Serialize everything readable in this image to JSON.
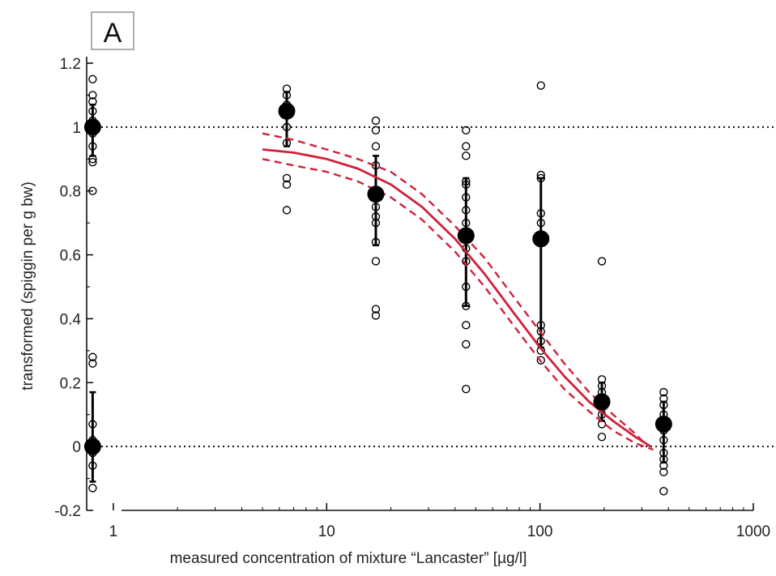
{
  "chart_data": {
    "type": "scatter",
    "panel_label": "A",
    "xlabel": "measured concentration of mixture “Lancaster” [µg/l]",
    "ylabel": "transformed (spiggin per g bw)",
    "x_scale": "log",
    "xlim": [
      0.75,
      1000
    ],
    "ylim": [
      -0.2,
      1.2
    ],
    "x_ticks": [
      1,
      10,
      100,
      1000
    ],
    "x_tick_labels": [
      "1",
      "10",
      "100",
      "1000"
    ],
    "y_ticks": [
      -0.2,
      0,
      0.2,
      0.4,
      0.6,
      0.8,
      1,
      1.2
    ],
    "y_tick_labels": [
      "-0.2",
      "0",
      "0.2",
      "0.4",
      "0.6",
      "0.8",
      "1",
      "1.2"
    ],
    "reference_lines": [
      1,
      0
    ],
    "colors": {
      "fit": "#d0213a",
      "points": "#000000"
    },
    "individual_points": [
      {
        "x": 0.8,
        "y": 1.15
      },
      {
        "x": 0.8,
        "y": 1.1
      },
      {
        "x": 0.8,
        "y": 1.08
      },
      {
        "x": 0.8,
        "y": 1.05
      },
      {
        "x": 0.8,
        "y": 1.02
      },
      {
        "x": 0.8,
        "y": 0.98
      },
      {
        "x": 0.8,
        "y": 0.94
      },
      {
        "x": 0.8,
        "y": 0.9
      },
      {
        "x": 0.8,
        "y": 0.89
      },
      {
        "x": 0.8,
        "y": 0.8
      },
      {
        "x": 0.8,
        "y": 0.28
      },
      {
        "x": 0.8,
        "y": 0.26
      },
      {
        "x": 0.8,
        "y": 0.07
      },
      {
        "x": 0.8,
        "y": 0.02
      },
      {
        "x": 0.8,
        "y": -0.02
      },
      {
        "x": 0.8,
        "y": -0.06
      },
      {
        "x": 0.8,
        "y": -0.13
      },
      {
        "x": 6.5,
        "y": 1.12
      },
      {
        "x": 6.5,
        "y": 1.1
      },
      {
        "x": 6.5,
        "y": 1.07
      },
      {
        "x": 6.5,
        "y": 1.0
      },
      {
        "x": 6.5,
        "y": 0.95
      },
      {
        "x": 6.5,
        "y": 0.84
      },
      {
        "x": 6.5,
        "y": 0.82
      },
      {
        "x": 6.5,
        "y": 0.74
      },
      {
        "x": 17,
        "y": 1.02
      },
      {
        "x": 17,
        "y": 0.99
      },
      {
        "x": 17,
        "y": 0.94
      },
      {
        "x": 17,
        "y": 0.88
      },
      {
        "x": 17,
        "y": 0.8
      },
      {
        "x": 17,
        "y": 0.75
      },
      {
        "x": 17,
        "y": 0.72
      },
      {
        "x": 17,
        "y": 0.7
      },
      {
        "x": 17,
        "y": 0.64
      },
      {
        "x": 17,
        "y": 0.58
      },
      {
        "x": 17,
        "y": 0.43
      },
      {
        "x": 17,
        "y": 0.41
      },
      {
        "x": 45,
        "y": 0.99
      },
      {
        "x": 45,
        "y": 0.94
      },
      {
        "x": 45,
        "y": 0.91
      },
      {
        "x": 45,
        "y": 0.83
      },
      {
        "x": 45,
        "y": 0.82
      },
      {
        "x": 45,
        "y": 0.78
      },
      {
        "x": 45,
        "y": 0.74
      },
      {
        "x": 45,
        "y": 0.7
      },
      {
        "x": 45,
        "y": 0.66
      },
      {
        "x": 45,
        "y": 0.62
      },
      {
        "x": 45,
        "y": 0.58
      },
      {
        "x": 45,
        "y": 0.5
      },
      {
        "x": 45,
        "y": 0.44
      },
      {
        "x": 45,
        "y": 0.38
      },
      {
        "x": 45,
        "y": 0.32
      },
      {
        "x": 45,
        "y": 0.18
      },
      {
        "x": 101,
        "y": 1.13
      },
      {
        "x": 101,
        "y": 0.85
      },
      {
        "x": 101,
        "y": 0.84
      },
      {
        "x": 101,
        "y": 0.73
      },
      {
        "x": 101,
        "y": 0.7
      },
      {
        "x": 101,
        "y": 0.38
      },
      {
        "x": 101,
        "y": 0.36
      },
      {
        "x": 101,
        "y": 0.33
      },
      {
        "x": 101,
        "y": 0.3
      },
      {
        "x": 101,
        "y": 0.27
      },
      {
        "x": 195,
        "y": 0.58
      },
      {
        "x": 195,
        "y": 0.21
      },
      {
        "x": 195,
        "y": 0.19
      },
      {
        "x": 195,
        "y": 0.17
      },
      {
        "x": 195,
        "y": 0.15
      },
      {
        "x": 195,
        "y": 0.12
      },
      {
        "x": 195,
        "y": 0.1
      },
      {
        "x": 195,
        "y": 0.07
      },
      {
        "x": 195,
        "y": 0.03
      },
      {
        "x": 380,
        "y": 0.17
      },
      {
        "x": 380,
        "y": 0.15
      },
      {
        "x": 380,
        "y": 0.13
      },
      {
        "x": 380,
        "y": 0.1
      },
      {
        "x": 380,
        "y": 0.08
      },
      {
        "x": 380,
        "y": 0.05
      },
      {
        "x": 380,
        "y": 0.02
      },
      {
        "x": 380,
        "y": -0.02
      },
      {
        "x": 380,
        "y": -0.04
      },
      {
        "x": 380,
        "y": -0.06
      },
      {
        "x": 380,
        "y": -0.08
      },
      {
        "x": 380,
        "y": -0.14
      }
    ],
    "group_means": [
      {
        "x": 0.8,
        "y": 1.0,
        "err_low": 0.91,
        "err_high": 1.07
      },
      {
        "x": 0.8,
        "y": 0.0,
        "err_low": -0.11,
        "err_high": 0.17
      },
      {
        "x": 6.5,
        "y": 1.05,
        "err_low": 0.94,
        "err_high": 1.11
      },
      {
        "x": 17,
        "y": 0.79,
        "err_low": 0.63,
        "err_high": 0.91
      },
      {
        "x": 45,
        "y": 0.66,
        "err_low": 0.44,
        "err_high": 0.84
      },
      {
        "x": 101,
        "y": 0.65,
        "err_low": 0.31,
        "err_high": 0.84
      },
      {
        "x": 195,
        "y": 0.14,
        "err_low": 0.08,
        "err_high": 0.2
      },
      {
        "x": 380,
        "y": 0.07,
        "err_low": -0.05,
        "err_high": 0.14
      }
    ],
    "fit_curve": {
      "x": [
        5,
        7,
        10,
        14,
        20,
        28,
        40,
        55,
        75,
        100,
        130,
        170,
        220,
        280,
        330
      ],
      "y": [
        0.93,
        0.92,
        0.9,
        0.87,
        0.82,
        0.75,
        0.65,
        0.54,
        0.42,
        0.31,
        0.22,
        0.14,
        0.08,
        0.03,
        0.0
      ]
    },
    "fit_ci_upper": {
      "x": [
        5,
        7,
        10,
        14,
        20,
        28,
        40,
        55,
        75,
        100,
        130,
        170,
        220,
        280,
        320
      ],
      "y": [
        0.98,
        0.96,
        0.93,
        0.9,
        0.86,
        0.79,
        0.69,
        0.59,
        0.47,
        0.36,
        0.26,
        0.17,
        0.1,
        0.04,
        0.0
      ]
    },
    "fit_ci_lower": {
      "x": [
        5,
        7,
        10,
        14,
        20,
        28,
        40,
        55,
        75,
        100,
        130,
        170,
        220,
        280,
        340
      ],
      "y": [
        0.9,
        0.88,
        0.86,
        0.83,
        0.78,
        0.71,
        0.61,
        0.5,
        0.38,
        0.27,
        0.18,
        0.11,
        0.05,
        0.01,
        -0.01
      ]
    }
  }
}
